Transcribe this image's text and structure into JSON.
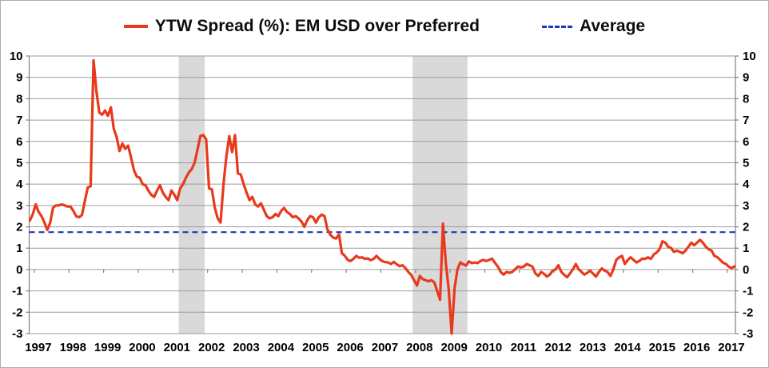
{
  "legend": {
    "series_label": "YTW Spread (%): EM USD over Preferred",
    "average_label": "Average"
  },
  "colors": {
    "series": "#e8391c",
    "average": "#2038b0",
    "recession_band": "#d9d9d9",
    "gridline": "#9b9b9b",
    "axis": "#808080",
    "text": "#000000"
  },
  "chart_data": {
    "type": "line",
    "title": "YTW Spread (%): EM USD over Preferred",
    "x_frequency": "monthly",
    "x_start": "1996-11",
    "x_year_labels": [
      "1997",
      "1998",
      "1999",
      "2000",
      "2001",
      "2002",
      "2003",
      "2004",
      "2005",
      "2006",
      "2007",
      "2008",
      "2009",
      "2010",
      "2011",
      "2012",
      "2013",
      "2014",
      "2015",
      "2016",
      "2017"
    ],
    "ylim": [
      -3,
      10
    ],
    "ytick_step": 1,
    "y_ticks": [
      10,
      9,
      8,
      7,
      6,
      5,
      4,
      3,
      2,
      1,
      0,
      -1,
      -2,
      -3
    ],
    "grid": true,
    "axes_on_both_sides": true,
    "legend_position": "top",
    "average_line": {
      "label": "Average",
      "value": 1.75,
      "style": "dashed"
    },
    "recession_bands": [
      {
        "start_month_index": 51.5,
        "end_month_index": 60.5
      },
      {
        "start_month_index": 132.5,
        "end_month_index": 151.5
      }
    ],
    "series": [
      {
        "name": "YTW Spread (%): EM USD over Preferred",
        "values": [
          2.3,
          2.6,
          3.05,
          2.7,
          2.5,
          2.2,
          1.85,
          2.2,
          2.9,
          3.0,
          3.0,
          3.05,
          3.0,
          2.95,
          2.95,
          2.75,
          2.5,
          2.45,
          2.55,
          3.2,
          3.85,
          3.9,
          9.8,
          8.35,
          7.35,
          7.25,
          7.45,
          7.2,
          7.6,
          6.6,
          6.2,
          5.55,
          5.9,
          5.65,
          5.8,
          5.25,
          4.65,
          4.35,
          4.3,
          4.0,
          3.95,
          3.7,
          3.5,
          3.4,
          3.7,
          3.95,
          3.6,
          3.4,
          3.25,
          3.7,
          3.5,
          3.25,
          3.8,
          4.0,
          4.3,
          4.55,
          4.7,
          5.0,
          5.6,
          6.25,
          6.3,
          6.1,
          3.8,
          3.75,
          2.9,
          2.4,
          2.2,
          4.0,
          5.3,
          6.25,
          5.5,
          6.3,
          4.5,
          4.45,
          4.0,
          3.6,
          3.25,
          3.4,
          3.05,
          2.95,
          3.1,
          2.8,
          2.5,
          2.4,
          2.45,
          2.6,
          2.5,
          2.75,
          2.88,
          2.7,
          2.6,
          2.45,
          2.5,
          2.4,
          2.25,
          2.0,
          2.3,
          2.5,
          2.45,
          2.2,
          2.45,
          2.57,
          2.5,
          1.88,
          1.63,
          1.5,
          1.45,
          1.65,
          0.76,
          0.65,
          0.45,
          0.4,
          0.5,
          0.64,
          0.55,
          0.57,
          0.5,
          0.52,
          0.44,
          0.5,
          0.64,
          0.5,
          0.39,
          0.35,
          0.33,
          0.26,
          0.36,
          0.25,
          0.16,
          0.2,
          0.07,
          -0.11,
          -0.25,
          -0.5,
          -0.75,
          -0.3,
          -0.45,
          -0.5,
          -0.55,
          -0.5,
          -0.6,
          -1.0,
          -1.42,
          2.15,
          0.3,
          -0.9,
          -3.0,
          -0.9,
          0.0,
          0.33,
          0.25,
          0.19,
          0.38,
          0.3,
          0.33,
          0.3,
          0.4,
          0.45,
          0.4,
          0.45,
          0.51,
          0.32,
          0.14,
          -0.11,
          -0.24,
          -0.11,
          -0.15,
          -0.11,
          0.01,
          0.14,
          0.1,
          0.14,
          0.26,
          0.2,
          0.14,
          -0.18,
          -0.3,
          -0.11,
          -0.2,
          -0.33,
          -0.24,
          -0.05,
          0.01,
          0.2,
          -0.11,
          -0.25,
          -0.36,
          -0.18,
          0.01,
          0.26,
          0.01,
          -0.11,
          -0.24,
          -0.15,
          -0.05,
          -0.2,
          -0.33,
          -0.11,
          0.05,
          -0.05,
          -0.11,
          -0.3,
          0.01,
          0.45,
          0.57,
          0.64,
          0.26,
          0.45,
          0.57,
          0.45,
          0.33,
          0.4,
          0.51,
          0.5,
          0.57,
          0.5,
          0.7,
          0.8,
          0.95,
          1.32,
          1.26,
          1.07,
          1.01,
          0.83,
          0.89,
          0.83,
          0.76,
          0.89,
          1.07,
          1.26,
          1.14,
          1.26,
          1.39,
          1.26,
          1.07,
          0.95,
          0.89,
          0.64,
          0.58,
          0.45,
          0.32,
          0.26,
          0.13,
          0.07,
          0.15
        ]
      }
    ]
  }
}
